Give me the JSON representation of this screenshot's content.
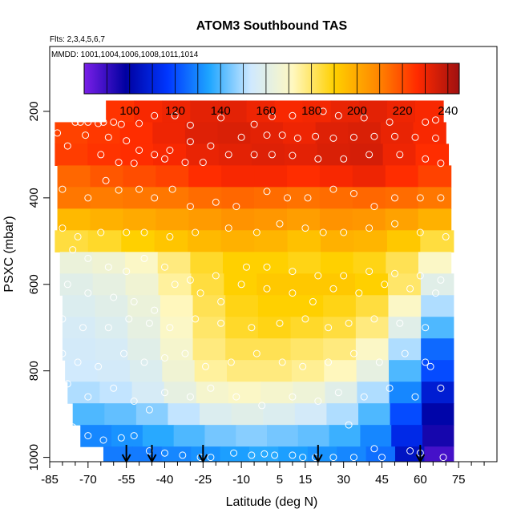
{
  "chart_data": {
    "type": "heatmap",
    "title": "ATOM3 Southbound TAS",
    "annotations": {
      "flights": "Flts: 2,3,4,5,6,7",
      "dates": "MMDD: 1001,1004,1006,1008,1011,1014"
    },
    "xlabel": "Latitude (deg N)",
    "ylabel": "PSXC (mbar)",
    "xlim": [
      -85,
      90
    ],
    "ylim": [
      1010,
      50
    ],
    "x_ticks": [
      -85,
      -70,
      -55,
      -40,
      -25,
      -10,
      5,
      15,
      30,
      45,
      60,
      75
    ],
    "x_minor_ticks": [
      -80,
      -75,
      -65,
      -60,
      -50,
      -45,
      -35,
      -30,
      -20,
      -15,
      -5,
      0,
      10,
      20,
      25,
      35,
      40,
      50,
      55,
      65,
      70,
      80,
      85
    ],
    "y_ticks": [
      200,
      400,
      600,
      800,
      1000
    ],
    "colorbar": {
      "range": [
        80,
        245
      ],
      "ticks": [
        100,
        120,
        140,
        160,
        180,
        200,
        220,
        240
      ],
      "divisions": [
        80,
        90,
        100,
        110,
        120,
        130,
        140,
        150,
        160,
        170,
        180,
        190,
        200,
        210,
        220,
        230,
        240,
        245
      ],
      "colors": [
        "#7a1fe8",
        "#0000a0",
        "#0037ff",
        "#1ea5ff",
        "#cfe9ff",
        "#fff8c0",
        "#ffd000",
        "#ff8a00",
        "#ff2a00",
        "#a01010"
      ]
    },
    "pressure_levels": [
      {
        "p": 200,
        "lat_min": -63,
        "lat_max": 69,
        "values": [
          225,
          228,
          230,
          232,
          232,
          230,
          228,
          229,
          231,
          232,
          230,
          228
        ]
      },
      {
        "p": 250,
        "lat_min": -83,
        "lat_max": 70,
        "values": [
          222,
          224,
          226,
          230,
          233,
          234,
          232,
          230,
          233,
          234,
          231,
          228
        ]
      },
      {
        "p": 300,
        "lat_min": -83,
        "lat_max": 71,
        "values": [
          223,
          225,
          226,
          228,
          231,
          232,
          233,
          232,
          234,
          235,
          230,
          226
        ]
      },
      {
        "p": 350,
        "lat_min": -82,
        "lat_max": 72,
        "values": [
          215,
          218,
          220,
          222,
          226,
          228,
          228,
          226,
          228,
          230,
          226,
          222
        ]
      },
      {
        "p": 400,
        "lat_min": -82,
        "lat_max": 72,
        "values": [
          212,
          211,
          212,
          212,
          214,
          215,
          214,
          213,
          214,
          215,
          214,
          212
        ]
      },
      {
        "p": 450,
        "lat_min": -82,
        "lat_max": 72,
        "values": [
          196,
          198,
          200,
          202,
          204,
          206,
          205,
          203,
          206,
          205,
          202,
          198
        ]
      },
      {
        "p": 500,
        "lat_min": -83,
        "lat_max": 73,
        "values": [
          184,
          186,
          190,
          193,
          196,
          198,
          197,
          194,
          198,
          197,
          192,
          184
        ]
      },
      {
        "p": 550,
        "lat_min": -81,
        "lat_max": 72,
        "values": [
          164,
          166,
          170,
          178,
          186,
          190,
          190,
          188,
          190,
          188,
          182,
          170
        ]
      },
      {
        "p": 600,
        "lat_min": -81,
        "lat_max": 73,
        "values": [
          160,
          162,
          166,
          175,
          184,
          190,
          192,
          192,
          192,
          190,
          180,
          160
        ]
      },
      {
        "p": 650,
        "lat_min": -80,
        "lat_max": 73,
        "values": [
          158,
          160,
          164,
          172,
          182,
          188,
          190,
          190,
          188,
          184,
          170,
          150
        ]
      },
      {
        "p": 700,
        "lat_min": -80,
        "lat_max": 73,
        "values": [
          156,
          158,
          162,
          170,
          180,
          186,
          188,
          186,
          184,
          178,
          160,
          140
        ]
      },
      {
        "p": 750,
        "lat_min": -80,
        "lat_max": 73,
        "values": [
          155,
          156,
          160,
          168,
          178,
          182,
          182,
          180,
          178,
          170,
          150,
          125
        ]
      },
      {
        "p": 800,
        "lat_min": -79,
        "lat_max": 73,
        "values": [
          154,
          155,
          158,
          166,
          175,
          178,
          178,
          176,
          172,
          162,
          140,
          120
        ]
      },
      {
        "p": 850,
        "lat_min": -78,
        "lat_max": 73,
        "values": [
          150,
          152,
          156,
          162,
          168,
          170,
          168,
          165,
          160,
          150,
          130,
          108
        ]
      },
      {
        "p": 900,
        "lat_min": -76,
        "lat_max": 73,
        "values": [
          140,
          142,
          146,
          152,
          158,
          160,
          158,
          155,
          150,
          140,
          120,
          100
        ]
      },
      {
        "p": 950,
        "lat_min": -73,
        "lat_max": 73,
        "values": [
          130,
          132,
          136,
          140,
          144,
          146,
          144,
          142,
          138,
          130,
          112,
          95
        ]
      },
      {
        "p": 1000,
        "lat_min": -64,
        "lat_max": 73,
        "values": [
          128,
          128,
          130,
          132,
          134,
          136,
          134,
          132,
          130,
          126,
          105,
          88
        ]
      }
    ],
    "observations": [
      [
        -75,
        225
      ],
      [
        -73,
        225
      ],
      [
        -70,
        225
      ],
      [
        -66,
        228
      ],
      [
        -64,
        225
      ],
      [
        -60,
        225
      ],
      [
        -57,
        230
      ],
      [
        -50,
        228
      ],
      [
        -44,
        210
      ],
      [
        -36,
        210
      ],
      [
        -30,
        232
      ],
      [
        -18,
        215
      ],
      [
        -5,
        230
      ],
      [
        2,
        212
      ],
      [
        10,
        210
      ],
      [
        22,
        200
      ],
      [
        28,
        210
      ],
      [
        38,
        215
      ],
      [
        48,
        225
      ],
      [
        62,
        225
      ],
      [
        66,
        220
      ],
      [
        -82,
        250
      ],
      [
        -71,
        255
      ],
      [
        -62,
        260
      ],
      [
        -55,
        268
      ],
      [
        -50,
        290
      ],
      [
        -44,
        300
      ],
      [
        -38,
        290
      ],
      [
        -30,
        270
      ],
      [
        -22,
        280
      ],
      [
        -10,
        260
      ],
      [
        0,
        255
      ],
      [
        6,
        255
      ],
      [
        12,
        262
      ],
      [
        19,
        258
      ],
      [
        26,
        262
      ],
      [
        34,
        260
      ],
      [
        42,
        258
      ],
      [
        50,
        258
      ],
      [
        58,
        260
      ],
      [
        66,
        262
      ],
      [
        -78,
        280
      ],
      [
        -65,
        300
      ],
      [
        -58,
        318
      ],
      [
        -52,
        320
      ],
      [
        -40,
        310
      ],
      [
        -32,
        318
      ],
      [
        -25,
        318
      ],
      [
        -15,
        300
      ],
      [
        -5,
        300
      ],
      [
        2,
        300
      ],
      [
        10,
        302
      ],
      [
        20,
        310
      ],
      [
        30,
        310
      ],
      [
        40,
        300
      ],
      [
        52,
        300
      ],
      [
        62,
        310
      ],
      [
        68,
        320
      ],
      [
        -80,
        380
      ],
      [
        -70,
        400
      ],
      [
        -63,
        360
      ],
      [
        -58,
        382
      ],
      [
        -50,
        380
      ],
      [
        -44,
        400
      ],
      [
        -37,
        380
      ],
      [
        -30,
        420
      ],
      [
        -20,
        410
      ],
      [
        -12,
        420
      ],
      [
        0,
        385
      ],
      [
        8,
        400
      ],
      [
        16,
        400
      ],
      [
        26,
        380
      ],
      [
        34,
        390
      ],
      [
        42,
        420
      ],
      [
        50,
        400
      ],
      [
        60,
        400
      ],
      [
        68,
        400
      ],
      [
        -80,
        470
      ],
      [
        -74,
        490
      ],
      [
        -65,
        480
      ],
      [
        -55,
        480
      ],
      [
        -48,
        480
      ],
      [
        -38,
        490
      ],
      [
        -28,
        480
      ],
      [
        -15,
        470
      ],
      [
        -4,
        480
      ],
      [
        5,
        460
      ],
      [
        15,
        470
      ],
      [
        22,
        480
      ],
      [
        30,
        480
      ],
      [
        40,
        470
      ],
      [
        50,
        460
      ],
      [
        60,
        480
      ],
      [
        70,
        490
      ],
      [
        -76,
        520
      ],
      [
        -70,
        540
      ],
      [
        -62,
        560
      ],
      [
        -55,
        570
      ],
      [
        -48,
        540
      ],
      [
        -40,
        560
      ],
      [
        -30,
        590
      ],
      [
        -20,
        580
      ],
      [
        -8,
        560
      ],
      [
        0,
        560
      ],
      [
        10,
        570
      ],
      [
        20,
        580
      ],
      [
        30,
        580
      ],
      [
        40,
        570
      ],
      [
        50,
        575
      ],
      [
        60,
        580
      ],
      [
        68,
        590
      ],
      [
        -78,
        600
      ],
      [
        -70,
        620
      ],
      [
        -60,
        630
      ],
      [
        -52,
        640
      ],
      [
        -44,
        660
      ],
      [
        -36,
        600
      ],
      [
        -26,
        620
      ],
      [
        -18,
        640
      ],
      [
        -10,
        600
      ],
      [
        0,
        610
      ],
      [
        10,
        620
      ],
      [
        18,
        640
      ],
      [
        26,
        610
      ],
      [
        36,
        620
      ],
      [
        46,
        600
      ],
      [
        56,
        610
      ],
      [
        66,
        620
      ],
      [
        -80,
        680
      ],
      [
        -72,
        700
      ],
      [
        -62,
        700
      ],
      [
        -54,
        680
      ],
      [
        -46,
        690
      ],
      [
        -38,
        700
      ],
      [
        -28,
        680
      ],
      [
        -18,
        690
      ],
      [
        -6,
        700
      ],
      [
        5,
        690
      ],
      [
        15,
        680
      ],
      [
        24,
        700
      ],
      [
        32,
        690
      ],
      [
        42,
        680
      ],
      [
        52,
        690
      ],
      [
        62,
        700
      ],
      [
        -80,
        760
      ],
      [
        -74,
        780
      ],
      [
        -66,
        790
      ],
      [
        -56,
        760
      ],
      [
        -48,
        780
      ],
      [
        -40,
        770
      ],
      [
        -32,
        760
      ],
      [
        -24,
        790
      ],
      [
        -14,
        780
      ],
      [
        -4,
        760
      ],
      [
        6,
        780
      ],
      [
        14,
        790
      ],
      [
        24,
        780
      ],
      [
        34,
        760
      ],
      [
        44,
        780
      ],
      [
        54,
        760
      ],
      [
        64,
        790
      ],
      [
        -78,
        830
      ],
      [
        -70,
        860
      ],
      [
        -60,
        840
      ],
      [
        -52,
        870
      ],
      [
        -46,
        890
      ],
      [
        -40,
        850
      ],
      [
        -30,
        860
      ],
      [
        -22,
        840
      ],
      [
        -12,
        860
      ],
      [
        -2,
        880
      ],
      [
        10,
        860
      ],
      [
        20,
        870
      ],
      [
        28,
        850
      ],
      [
        38,
        860
      ],
      [
        48,
        840
      ],
      [
        58,
        860
      ],
      [
        68,
        840
      ],
      [
        -76,
        930
      ],
      [
        -70,
        950
      ],
      [
        -64,
        960
      ],
      [
        -57,
        955
      ],
      [
        -52,
        950
      ],
      [
        -46,
        985
      ],
      [
        -40,
        990
      ],
      [
        -33,
        995
      ],
      [
        -26,
        1000
      ],
      [
        -22,
        1000
      ],
      [
        -13,
        990
      ],
      [
        -6,
        995
      ],
      [
        -1,
        992
      ],
      [
        3,
        995
      ],
      [
        10,
        995
      ],
      [
        14,
        1000
      ],
      [
        19,
        1000
      ],
      [
        26,
        1000
      ],
      [
        32,
        925
      ],
      [
        34,
        1000
      ],
      [
        42,
        980
      ],
      [
        45,
        1000
      ],
      [
        56,
        985
      ],
      [
        60,
        990
      ],
      [
        62,
        780
      ],
      [
        69,
        1000
      ]
    ],
    "flight_markers_lat": [
      -55,
      -45,
      -25,
      20,
      60
    ]
  }
}
